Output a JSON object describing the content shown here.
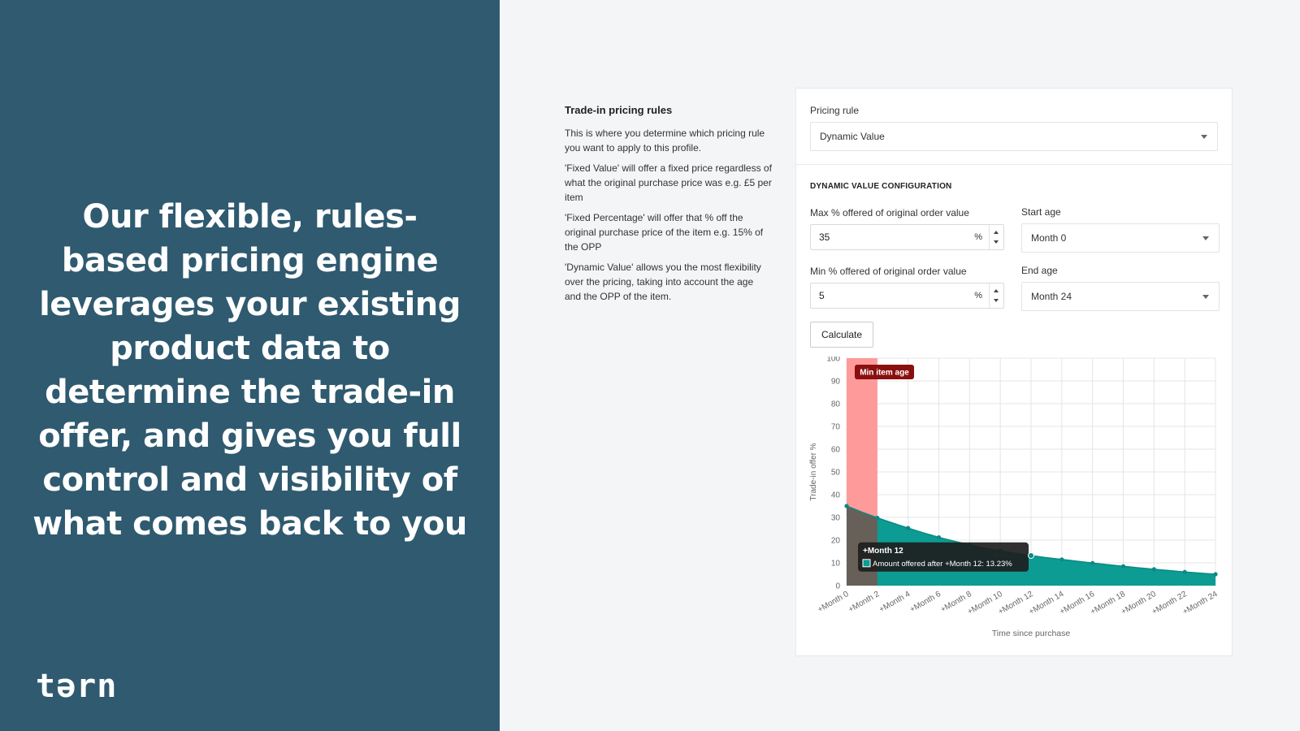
{
  "hero": {
    "text": "Our flexible, rules-based pricing engine leverages your existing product data to determine the trade-in offer, and gives you full control and visibility of what comes back to you"
  },
  "brand": {
    "logo_text": "tərn"
  },
  "rules": {
    "title": "Trade-in pricing rules",
    "paragraphs": [
      "This is where you determine which pricing rule you want to apply to this profile.",
      "'Fixed Value' will offer a fixed price regardless of what the original purchase price was e.g. £5 per item",
      "'Fixed Percentage' will offer that % off the original purchase price of the item e.g. 15% of the OPP",
      "'Dynamic Value' allows you the most flexibility over the pricing, taking into account the age and the OPP of the item."
    ]
  },
  "form": {
    "pricing_rule_label": "Pricing rule",
    "pricing_rule_value": "Dynamic Value",
    "section_heading": "DYNAMIC VALUE CONFIGURATION",
    "max_label": "Max % offered of original order value",
    "max_value": "35",
    "min_label": "Min % offered of original order value",
    "min_value": "5",
    "unit": "%",
    "start_age_label": "Start age",
    "start_age_value": "Month 0",
    "end_age_label": "End age",
    "end_age_value": "Month 24",
    "calculate_label": "Calculate"
  },
  "colors": {
    "left_panel": "#2f5a70",
    "area_fill": "#0c9c94",
    "min_age_band": "#ff9a9a",
    "min_age_badge": "#8b0f0f",
    "tooltip_bg": "#1e1e1e"
  },
  "chart_data": {
    "type": "area",
    "xlabel": "Time since purchase",
    "ylabel": "Trade-in offer %",
    "ylim": [
      0,
      100
    ],
    "yticks": [
      0,
      10,
      20,
      30,
      40,
      50,
      60,
      70,
      80,
      90,
      100
    ],
    "x": [
      "+Month 0",
      "+Month 1",
      "+Month 2",
      "+Month 3",
      "+Month 4",
      "+Month 5",
      "+Month 6",
      "+Month 7",
      "+Month 8",
      "+Month 9",
      "+Month 10",
      "+Month 11",
      "+Month 12",
      "+Month 13",
      "+Month 14",
      "+Month 15",
      "+Month 16",
      "+Month 17",
      "+Month 18",
      "+Month 19",
      "+Month 20",
      "+Month 21",
      "+Month 22",
      "+Month 23",
      "+Month 24"
    ],
    "xtick_labels": [
      "+Month 0",
      "+Month 2",
      "+Month 4",
      "+Month 6",
      "+Month 8",
      "+Month 10",
      "+Month 12",
      "+Month 14",
      "+Month 16",
      "+Month 18",
      "+Month 20",
      "+Month 22",
      "+Month 24"
    ],
    "series": [
      {
        "name": "Amount offered after",
        "values": [
          35,
          32.3,
          29.8,
          27.5,
          25.3,
          23.2,
          21.2,
          19.5,
          17.9,
          16.5,
          15.3,
          14.2,
          13.23,
          12.3,
          11.5,
          10.7,
          9.9,
          9.2,
          8.5,
          7.8,
          7.2,
          6.6,
          6.0,
          5.5,
          5.0
        ]
      }
    ],
    "annotations": {
      "min_item_age_label": "Min item age",
      "min_item_age_range": [
        "+Month 0",
        "+Month 1"
      ],
      "tooltip_title": "+Month 12",
      "tooltip_text": "Amount offered after +Month 12: 13.23%"
    },
    "grid": true
  }
}
